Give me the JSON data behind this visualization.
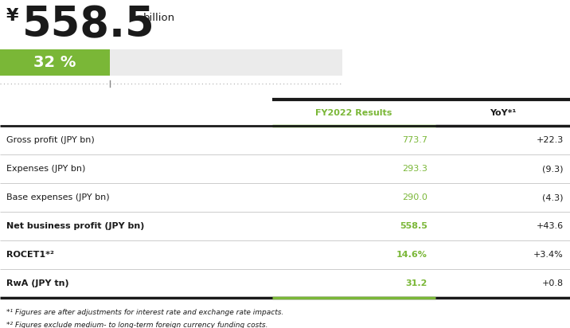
{
  "title_yen": "¥",
  "title_number": "558.5",
  "title_suffix": "billion",
  "percent_value": "32",
  "percent_bar_filled": 0.32,
  "bar_color_filled": "#7AB737",
  "bar_color_empty": "#EBEBEB",
  "col_header_1": "FY2022 Results",
  "col_header_2": "YoY*¹",
  "col_header_color": "#7AB737",
  "rows": [
    {
      "label": "Gross profit (JPY bn)",
      "bold": false,
      "value1": "773.7",
      "value2": "+22.3"
    },
    {
      "label": "Expenses (JPY bn)",
      "bold": false,
      "value1": "293.3",
      "value2": "(9.3)"
    },
    {
      "label": "Base expenses (JPY bn)",
      "bold": false,
      "value1": "290.0",
      "value2": "(4.3)"
    },
    {
      "label": "Net business profit (JPY bn)",
      "bold": true,
      "value1": "558.5",
      "value2": "+43.6"
    },
    {
      "label": "ROCET1*²",
      "bold": true,
      "value1": "14.6%",
      "value2": "+3.4%"
    },
    {
      "label": "RwA (JPY tn)",
      "bold": true,
      "value1": "31.2",
      "value2": "+0.8"
    }
  ],
  "footnote1": "*¹ Figures are after adjustments for interest rate and exchange rate impacts.",
  "footnote2": "*² Figures exclude medium- to long-term foreign currency funding costs.",
  "green_color": "#7AB737",
  "dark_color": "#1A1A1A",
  "gray_line_color": "#CCCCCC",
  "bg_color": "#FFFFFF",
  "fig_w": 7.16,
  "fig_h": 4.12,
  "dpi": 100
}
